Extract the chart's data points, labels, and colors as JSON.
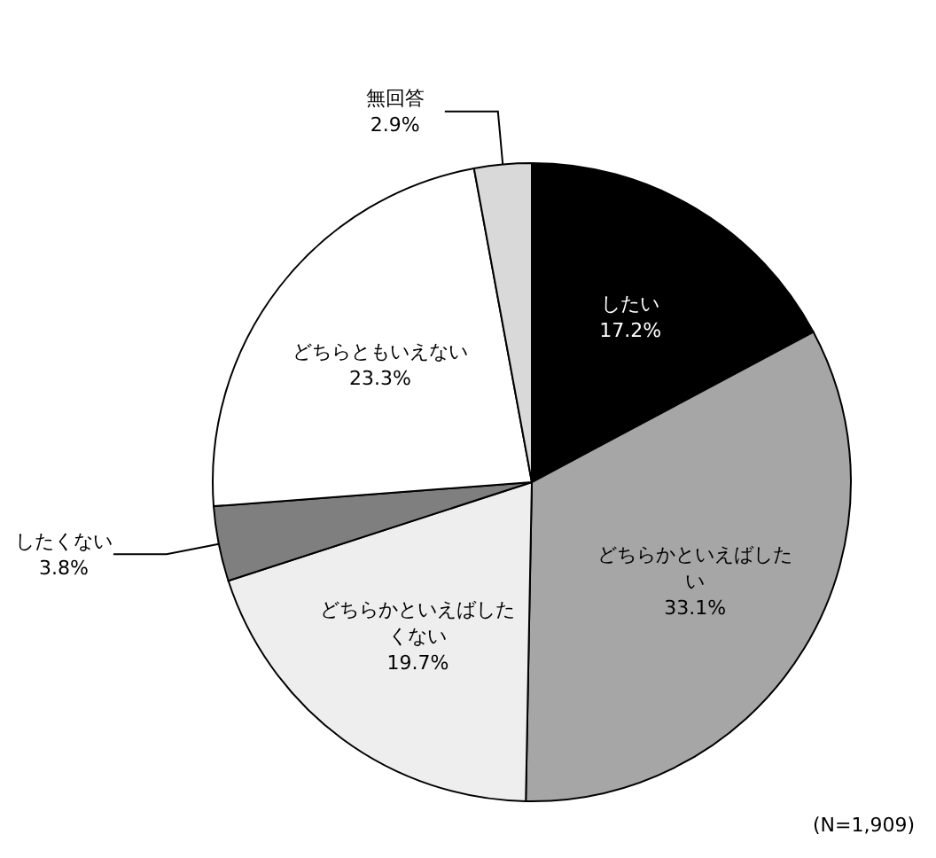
{
  "chart_data": {
    "type": "pie",
    "categories": [
      "したい",
      "どちらかといえばしたい",
      "どちらかといえばしたくない",
      "したくない",
      "どちらともいえない",
      "無回答"
    ],
    "values": [
      17.2,
      33.1,
      19.7,
      3.8,
      23.3,
      2.9
    ],
    "value_labels": [
      "17.2%",
      "33.1%",
      "19.7%",
      "3.8%",
      "23.3%",
      "2.9%"
    ],
    "colors": [
      "#000000",
      "#a6a6a6",
      "#eeeeee",
      "#7f7f7f",
      "#ffffff",
      "#d9d9d9"
    ],
    "annotations": [
      "(N=1,909)"
    ]
  }
}
